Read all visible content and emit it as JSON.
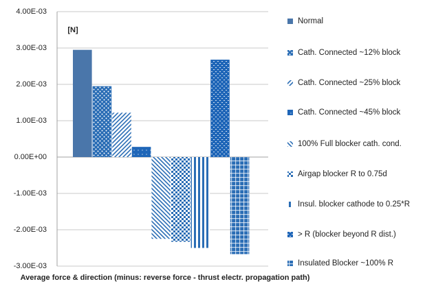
{
  "chart_data": {
    "type": "bar",
    "y_axis_label": "[N]",
    "x_axis_label": "Average force & direction (minus: reverse force - thrust electr. propagation path)",
    "categories": [
      null
    ],
    "ylim": [
      -0.003,
      0.004
    ],
    "yticks": [
      {
        "value": 0.004,
        "label": "4.00E-03"
      },
      {
        "value": 0.003,
        "label": "3.00E-03"
      },
      {
        "value": 0.002,
        "label": "2.00E-03"
      },
      {
        "value": 0.001,
        "label": "1.00E-03"
      },
      {
        "value": 0,
        "label": "0.00E+00"
      },
      {
        "value": -0.001,
        "label": "-1.00E-03"
      },
      {
        "value": -0.002,
        "label": "-2.00E-03"
      },
      {
        "value": -0.003,
        "label": "-3.00E-03"
      }
    ],
    "grid": true,
    "legend": "right",
    "series": [
      {
        "name": "Normal",
        "color": "#4a76aa",
        "pattern": "solid",
        "values": [
          0.00295
        ]
      },
      {
        "name": "Cath. Connected ~12% block",
        "color": "#2a6db5",
        "pattern": "dots",
        "values": [
          0.00195
        ]
      },
      {
        "name": "Cath. Connected ~25% block",
        "color": "#2a6db5",
        "pattern": "diag-up",
        "values": [
          0.00122
        ]
      },
      {
        "name": "Cath. Connected ~45% block",
        "color": "#1f66b8",
        "pattern": "dense",
        "values": [
          0.00028
        ]
      },
      {
        "name": "100% Full blocker cath. cond.",
        "color": "#2a6db5",
        "pattern": "diag-down",
        "values": [
          -0.00225
        ]
      },
      {
        "name": "Airgap blocker R to 0.75d",
        "color": "#2a6db5",
        "pattern": "checker",
        "values": [
          -0.00233
        ]
      },
      {
        "name": "Insul. blocker cathode to 0.25*R",
        "color": "#2a6db5",
        "pattern": "vertical",
        "values": [
          -0.0025
        ]
      },
      {
        "name": "> R (blocker beyond R dist.)",
        "color": "#1f66b8",
        "pattern": "dense-h",
        "values": [
          0.00268
        ]
      },
      {
        "name": "Insulated Blocker ~100% R",
        "color": "#2a6db5",
        "pattern": "cross",
        "values": [
          -0.00267
        ]
      }
    ]
  }
}
